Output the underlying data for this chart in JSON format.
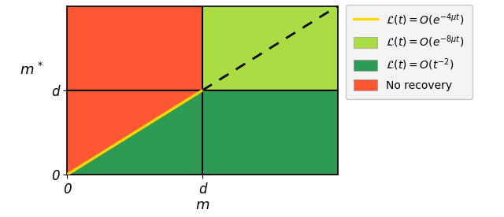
{
  "xlim": [
    0,
    1
  ],
  "ylim": [
    0,
    1
  ],
  "d_val": 0.5,
  "color_red": "#FF5733",
  "color_lightgreen": "#AADD44",
  "color_darkgreen": "#2E9B55",
  "color_yellow": "#FFD700",
  "xlabel": "m",
  "xticks": [
    0,
    0.5
  ],
  "xticklabels": [
    "0",
    "d"
  ],
  "yticks": [
    0,
    0.5
  ],
  "yticklabels": [
    "0",
    "d"
  ],
  "legend_labels": [
    "$\\mathcal{L}(t)=O(e^{-4\\mu t})$",
    "$\\mathcal{L}(t)=O(e^{-8\\mu t})$",
    "$\\mathcal{L}(t)=O(t^{-2})$",
    "No recovery"
  ],
  "legend_colors": [
    "#FFD700",
    "#AADD44",
    "#2E9B55",
    "#FF5733"
  ],
  "fig_width": 6.4,
  "fig_height": 2.76,
  "dpi": 100
}
